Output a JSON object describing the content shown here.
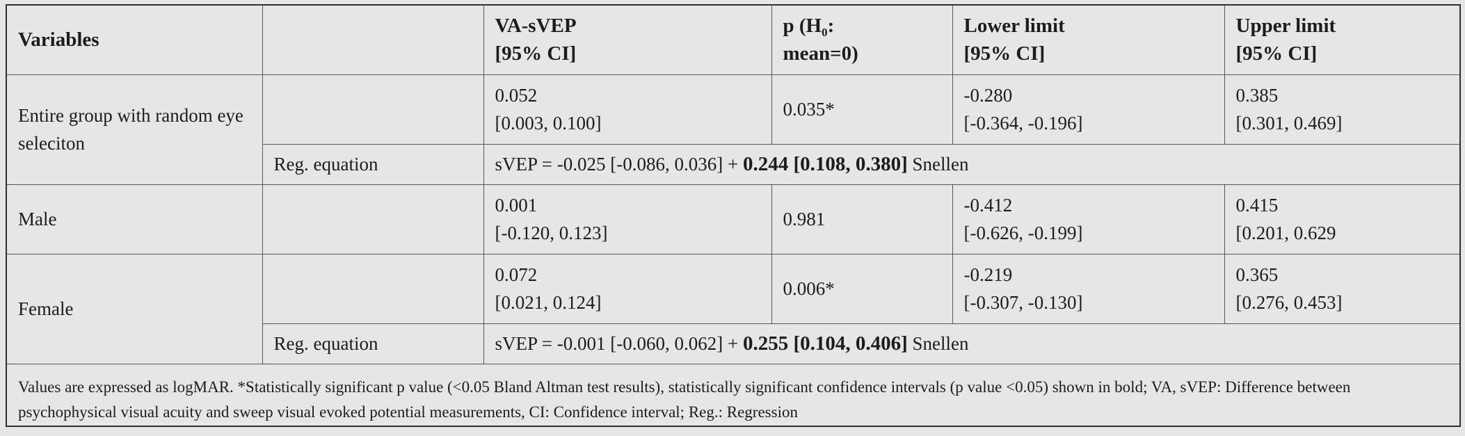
{
  "table": {
    "headers": {
      "variables": "Variables",
      "blank": "",
      "va_svep_line1": "VA-sVEP",
      "va_svep_line2": "[95% CI]",
      "p_line1_prefix": "p (H",
      "p_line1_sub": "0",
      "p_line1_suffix": ":",
      "p_line2": "mean=0)",
      "lower_line1": "Lower limit",
      "lower_line2": "[95% CI]",
      "upper_line1": "Upper limit",
      "upper_line2": "[95% CI]"
    },
    "rows": {
      "entire": {
        "label": "Entire group with random eye seleciton",
        "va_svep": "0.052",
        "va_svep_ci": "[0.003, 0.100]",
        "p": "0.035*",
        "lower": "-0.280",
        "lower_ci": "[-0.364, -0.196]",
        "upper": "0.385",
        "upper_ci": "[0.301, 0.469]",
        "reg_label": "Reg. equation",
        "reg_prefix": "sVEP = -0.025 [-0.086, 0.036] + ",
        "reg_bold": "0.244 [0.108, 0.380]",
        "reg_suffix": " Snellen"
      },
      "male": {
        "label": "Male",
        "va_svep": "0.001",
        "va_svep_ci": "[-0.120, 0.123]",
        "p": "0.981",
        "lower": "-0.412",
        "lower_ci": "[-0.626, -0.199]",
        "upper": "0.415",
        "upper_ci": "[0.201, 0.629"
      },
      "female": {
        "label": "Female",
        "va_svep": "0.072",
        "va_svep_ci": "[0.021, 0.124]",
        "p": "0.006*",
        "lower": "-0.219",
        "lower_ci": "[-0.307, -0.130]",
        "upper": "0.365",
        "upper_ci": "[0.276, 0.453]",
        "reg_label": "Reg. equation",
        "reg_prefix": "sVEP = -0.001 [-0.060, 0.062] + ",
        "reg_bold": "0.255 [0.104, 0.406]",
        "reg_suffix": " Snellen"
      }
    },
    "footer": "Values are expressed as logMAR. *Statistically significant p value (<0.05 Bland Altman test results), statistically significant confidence intervals (p value <0.05) shown in bold; VA, sVEP: Difference between psychophysical visual acuity and sweep visual evoked potential measurements, CI: Confidence interval; Reg.: Regression"
  },
  "colors": {
    "background": "#e6e6e6",
    "border": "#555555",
    "outer_border": "#2e2e2e",
    "text": "#1c1c1c"
  }
}
